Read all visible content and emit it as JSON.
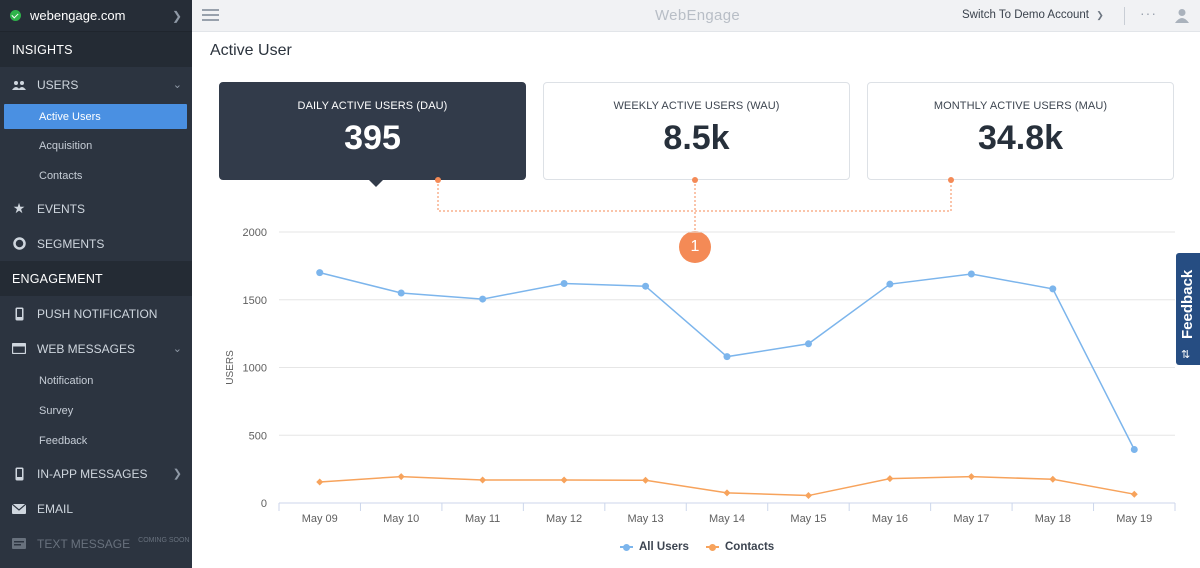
{
  "sidebar": {
    "account": "webengage.com",
    "section_insights": "INSIGHTS",
    "users": "USERS",
    "active_users": "Active Users",
    "acquisition": "Acquisition",
    "contacts": "Contacts",
    "events": "EVENTS",
    "segments": "SEGMENTS",
    "section_engagement": "ENGAGEMENT",
    "push": "PUSH NOTIFICATION",
    "web_messages": "WEB MESSAGES",
    "notification": "Notification",
    "survey": "Survey",
    "feedback": "Feedback",
    "in_app": "IN-APP MESSAGES",
    "email": "EMAIL",
    "text_message": "TEXT MESSAGE",
    "coming_soon": "COMING SOON"
  },
  "topbar": {
    "logo": "WebEngage",
    "demo": "Switch To Demo Account",
    "more": "···"
  },
  "page": {
    "title": "Active User"
  },
  "cards": [
    {
      "title": "DAILY ACTIVE USERS (DAU)",
      "value": "395"
    },
    {
      "title": "WEEKLY ACTIVE USERS (WAU)",
      "value": "8.5k"
    },
    {
      "title": "MONTHLY ACTIVE USERS (MAU)",
      "value": "34.8k"
    }
  ],
  "badge": "1",
  "feedback_tab": "Feedback",
  "chart_data": {
    "type": "line",
    "categories": [
      "May 09",
      "May 10",
      "May 11",
      "May 12",
      "May 13",
      "May 14",
      "May 15",
      "May 16",
      "May 17",
      "May 18",
      "May 19"
    ],
    "series": [
      {
        "name": "All Users",
        "color": "#7cb5ec",
        "values": [
          1700,
          1550,
          1505,
          1620,
          1600,
          1080,
          1175,
          1615,
          1690,
          1580,
          395
        ]
      },
      {
        "name": "Contacts",
        "color": "#f7a35c",
        "values": [
          155,
          195,
          170,
          170,
          168,
          75,
          55,
          180,
          195,
          175,
          65
        ]
      }
    ],
    "ylabel": "USERS",
    "ylim": [
      0,
      2000
    ],
    "yticks": [
      "0",
      "500",
      "1000",
      "1500",
      "2000"
    ],
    "grid": true,
    "legend": "bottom"
  }
}
